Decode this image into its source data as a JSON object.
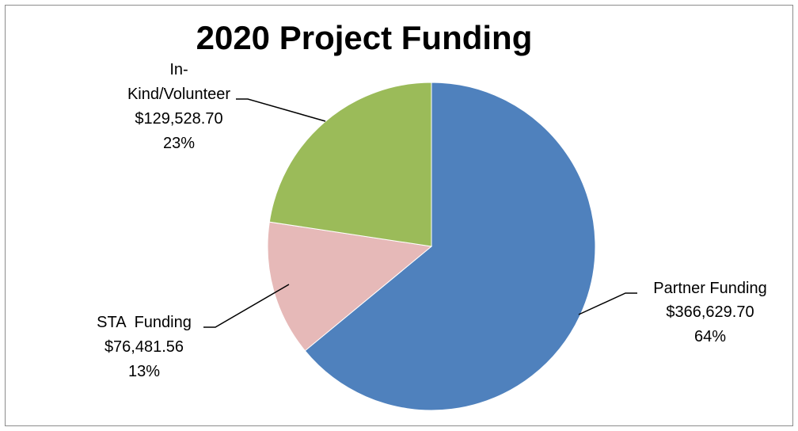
{
  "chart_data": {
    "type": "pie",
    "title": "2020 Project Funding",
    "slices": [
      {
        "label": "Partner Funding",
        "value_text": "$366,629.70",
        "percent_text": "64%",
        "value": 366629.7,
        "color": "#4f81bd"
      },
      {
        "label": "STA  Funding",
        "value_text": "$76,481.56",
        "percent_text": "13%",
        "value": 76481.56,
        "color": "#e6b9b8"
      },
      {
        "label": "In-Kind/Volunteer",
        "label_lines": [
          "In-",
          "Kind/Volunteer"
        ],
        "value_text": "$129,528.70",
        "percent_text": "23%",
        "value": 129528.7,
        "color": "#9bbb59"
      }
    ]
  }
}
